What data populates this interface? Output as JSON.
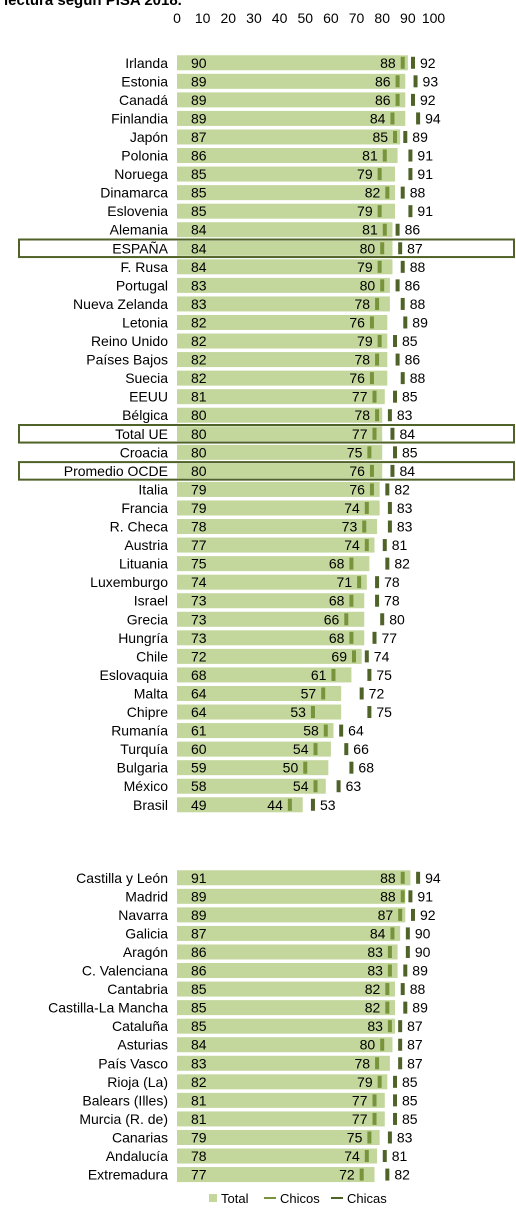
{
  "title_fragment": "lectura según PISA 2018.",
  "chart_data": {
    "type": "bar",
    "xlim": [
      0,
      100
    ],
    "x_ticks": [
      0,
      10,
      20,
      30,
      40,
      50,
      60,
      70,
      80,
      90,
      100
    ],
    "grid": false,
    "legend_position": "bottom",
    "legend": [
      "Total",
      "Chicos",
      "Chicas"
    ],
    "colors": {
      "total": "#c3d69b",
      "chicos": "#77933c",
      "chicas": "#4f6228",
      "highlight": "#4f6228"
    },
    "highlighted": [
      "ESPAÑA",
      "Total UE",
      "Promedio OCDE"
    ],
    "groups": [
      {
        "rows": [
          {
            "label": "Irlanda",
            "total": 90,
            "chicos": 88,
            "chicas": 92
          },
          {
            "label": "Estonia",
            "total": 89,
            "chicos": 86,
            "chicas": 93
          },
          {
            "label": "Canadá",
            "total": 89,
            "chicos": 86,
            "chicas": 92
          },
          {
            "label": "Finlandia",
            "total": 89,
            "chicos": 84,
            "chicas": 94
          },
          {
            "label": "Japón",
            "total": 87,
            "chicos": 85,
            "chicas": 89
          },
          {
            "label": "Polonia",
            "total": 86,
            "chicos": 81,
            "chicas": 91
          },
          {
            "label": "Noruega",
            "total": 85,
            "chicos": 79,
            "chicas": 91
          },
          {
            "label": "Dinamarca",
            "total": 85,
            "chicos": 82,
            "chicas": 88
          },
          {
            "label": "Eslovenia",
            "total": 85,
            "chicos": 79,
            "chicas": 91
          },
          {
            "label": "Alemania",
            "total": 84,
            "chicos": 81,
            "chicas": 86
          },
          {
            "label": "ESPAÑA",
            "total": 84,
            "chicos": 80,
            "chicas": 87
          },
          {
            "label": "F. Rusa",
            "total": 84,
            "chicos": 79,
            "chicas": 88
          },
          {
            "label": "Portugal",
            "total": 83,
            "chicos": 80,
            "chicas": 86
          },
          {
            "label": "Nueva Zelanda",
            "total": 83,
            "chicos": 78,
            "chicas": 88
          },
          {
            "label": "Letonia",
            "total": 82,
            "chicos": 76,
            "chicas": 89
          },
          {
            "label": "Reino Unido",
            "total": 82,
            "chicos": 79,
            "chicas": 85
          },
          {
            "label": "Países Bajos",
            "total": 82,
            "chicos": 78,
            "chicas": 86
          },
          {
            "label": "Suecia",
            "total": 82,
            "chicos": 76,
            "chicas": 88
          },
          {
            "label": "EEUU",
            "total": 81,
            "chicos": 77,
            "chicas": 85
          },
          {
            "label": "Bélgica",
            "total": 80,
            "chicos": 78,
            "chicas": 83
          },
          {
            "label": "Total UE",
            "total": 80,
            "chicos": 77,
            "chicas": 84
          },
          {
            "label": "Croacia",
            "total": 80,
            "chicos": 75,
            "chicas": 85
          },
          {
            "label": "Promedio OCDE",
            "total": 80,
            "chicos": 76,
            "chicas": 84
          },
          {
            "label": "Italia",
            "total": 79,
            "chicos": 76,
            "chicas": 82
          },
          {
            "label": "Francia",
            "total": 79,
            "chicos": 74,
            "chicas": 83
          },
          {
            "label": "R. Checa",
            "total": 78,
            "chicos": 73,
            "chicas": 83
          },
          {
            "label": "Austria",
            "total": 77,
            "chicos": 74,
            "chicas": 81
          },
          {
            "label": "Lituania",
            "total": 75,
            "chicos": 68,
            "chicas": 82
          },
          {
            "label": "Luxemburgo",
            "total": 74,
            "chicos": 71,
            "chicas": 78
          },
          {
            "label": "Israel",
            "total": 73,
            "chicos": 68,
            "chicas": 78
          },
          {
            "label": "Grecia",
            "total": 73,
            "chicos": 66,
            "chicas": 80
          },
          {
            "label": "Hungría",
            "total": 73,
            "chicos": 68,
            "chicas": 77
          },
          {
            "label": "Chile",
            "total": 72,
            "chicos": 69,
            "chicas": 74
          },
          {
            "label": "Eslovaquia",
            "total": 68,
            "chicos": 61,
            "chicas": 75
          },
          {
            "label": "Malta",
            "total": 64,
            "chicos": 57,
            "chicas": 72
          },
          {
            "label": "Chipre",
            "total": 64,
            "chicos": 53,
            "chicas": 75
          },
          {
            "label": "Rumanía",
            "total": 61,
            "chicos": 58,
            "chicas": 64
          },
          {
            "label": "Turquía",
            "total": 60,
            "chicos": 54,
            "chicas": 66
          },
          {
            "label": "Bulgaria",
            "total": 59,
            "chicos": 50,
            "chicas": 68
          },
          {
            "label": "México",
            "total": 58,
            "chicos": 54,
            "chicas": 63
          },
          {
            "label": "Brasil",
            "total": 49,
            "chicos": 44,
            "chicas": 53
          }
        ]
      },
      {
        "rows": [
          {
            "label": "Castilla y León",
            "total": 91,
            "chicos": 88,
            "chicas": 94
          },
          {
            "label": "Madrid",
            "total": 89,
            "chicos": 88,
            "chicas": 91
          },
          {
            "label": "Navarra",
            "total": 89,
            "chicos": 87,
            "chicas": 92
          },
          {
            "label": "Galicia",
            "total": 87,
            "chicos": 84,
            "chicas": 90
          },
          {
            "label": "Aragón",
            "total": 86,
            "chicos": 83,
            "chicas": 90
          },
          {
            "label": "C. Valenciana",
            "total": 86,
            "chicos": 83,
            "chicas": 89
          },
          {
            "label": "Cantabria",
            "total": 85,
            "chicos": 82,
            "chicas": 88
          },
          {
            "label": "Castilla-La Mancha",
            "total": 85,
            "chicos": 82,
            "chicas": 89
          },
          {
            "label": "Cataluña",
            "total": 85,
            "chicos": 83,
            "chicas": 87
          },
          {
            "label": "Asturias",
            "total": 84,
            "chicos": 80,
            "chicas": 87
          },
          {
            "label": "País Vasco",
            "total": 83,
            "chicos": 78,
            "chicas": 87
          },
          {
            "label": "Rioja (La)",
            "total": 82,
            "chicos": 79,
            "chicas": 85
          },
          {
            "label": "Balears (Illes)",
            "total": 81,
            "chicos": 77,
            "chicas": 85
          },
          {
            "label": "Murcia (R. de)",
            "total": 81,
            "chicos": 77,
            "chicas": 85
          },
          {
            "label": "Canarias",
            "total": 79,
            "chicos": 75,
            "chicas": 83
          },
          {
            "label": "Andalucía",
            "total": 78,
            "chicos": 74,
            "chicas": 81
          },
          {
            "label": "Extremadura",
            "total": 77,
            "chicos": 72,
            "chicas": 82
          }
        ]
      }
    ]
  }
}
